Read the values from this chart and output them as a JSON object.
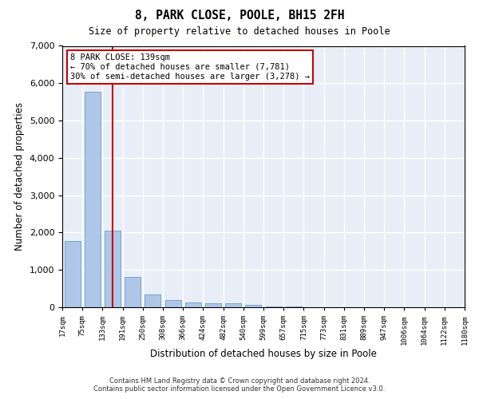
{
  "title": "8, PARK CLOSE, POOLE, BH15 2FH",
  "subtitle": "Size of property relative to detached houses in Poole",
  "xlabel": "Distribution of detached houses by size in Poole",
  "ylabel": "Number of detached properties",
  "bar_color": "#aec6e8",
  "bar_edge_color": "#5a8fc0",
  "background_color": "#e8eef8",
  "grid_color": "#ffffff",
  "bin_labels": [
    "17sqm",
    "75sqm",
    "133sqm",
    "191sqm",
    "250sqm",
    "308sqm",
    "366sqm",
    "424sqm",
    "482sqm",
    "540sqm",
    "599sqm",
    "657sqm",
    "715sqm",
    "773sqm",
    "831sqm",
    "889sqm",
    "947sqm",
    "1006sqm",
    "1064sqm",
    "1122sqm",
    "1180sqm"
  ],
  "values": [
    1780,
    5780,
    2060,
    820,
    340,
    190,
    125,
    105,
    100,
    70,
    30,
    20,
    10,
    5,
    3,
    2,
    2,
    1,
    1,
    0
  ],
  "ylim": [
    0,
    7000
  ],
  "yticks": [
    0,
    1000,
    2000,
    3000,
    4000,
    5000,
    6000,
    7000
  ],
  "property_line_x": 2,
  "annotation_title": "8 PARK CLOSE: 139sqm",
  "annotation_line1": "← 70% of detached houses are smaller (7,781)",
  "annotation_line2": "30% of semi-detached houses are larger (3,278) →",
  "annotation_box_color": "#cc0000",
  "footer_line1": "Contains HM Land Registry data © Crown copyright and database right 2024.",
  "footer_line2": "Contains public sector information licensed under the Open Government Licence v3.0."
}
